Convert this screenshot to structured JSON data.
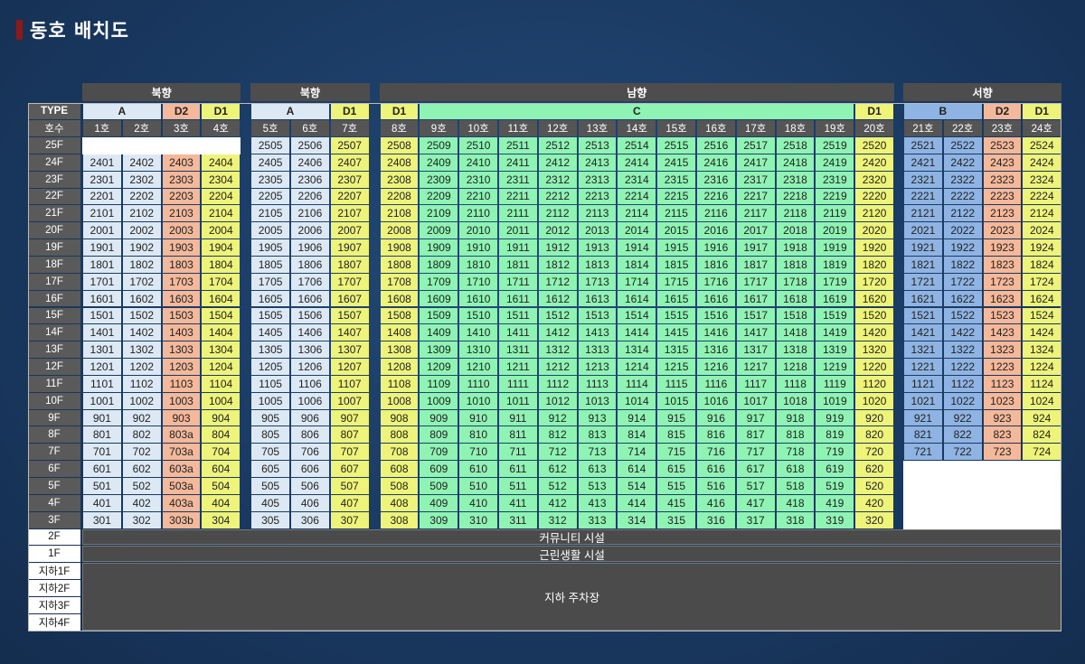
{
  "title": "동호 배치도",
  "colors": {
    "A": "#dce9f5",
    "B": "#8fb4e3",
    "C": "#8ff3b4",
    "D1": "#eef37a",
    "D2": "#f4b89a"
  },
  "labels": {
    "type": "TYPE",
    "ho": "호수",
    "floor2": "2F",
    "floor1": "1F",
    "b1": "지하1F",
    "b2": "지하2F",
    "b3": "지하3F",
    "b4": "지하4F",
    "community": "커뮤니티 시설",
    "retail": "근린생활 시설",
    "parking": "지하 주차장"
  },
  "floors": [
    "25F",
    "24F",
    "23F",
    "22F",
    "21F",
    "20F",
    "19F",
    "18F",
    "17F",
    "16F",
    "15F",
    "14F",
    "13F",
    "12F",
    "11F",
    "10F",
    "9F",
    "8F",
    "7F",
    "6F",
    "5F",
    "4F",
    "3F"
  ],
  "blocks": [
    {
      "direction": "북향",
      "types": [
        {
          "label": "A",
          "type": "A",
          "span": 2
        },
        {
          "label": "D2",
          "type": "D2",
          "span": 1
        },
        {
          "label": "D1",
          "type": "D1",
          "span": 1
        }
      ],
      "lines": [
        {
          "num": 1,
          "ho": "1호",
          "type": "A",
          "max": 24,
          "minF": 3
        },
        {
          "num": 2,
          "ho": "2호",
          "type": "A",
          "max": 24,
          "minF": 3
        },
        {
          "num": 3,
          "ho": "3호",
          "type": "D2",
          "max": 24,
          "minF": 3
        },
        {
          "num": 4,
          "ho": "4호",
          "type": "D1",
          "max": 24,
          "minF": 3
        }
      ]
    },
    {
      "direction": "북향",
      "types": [
        {
          "label": "A",
          "type": "A",
          "span": 2
        },
        {
          "label": "D1",
          "type": "D1",
          "span": 1
        }
      ],
      "lines": [
        {
          "num": 5,
          "ho": "5호",
          "type": "A",
          "max": 25,
          "minF": 3
        },
        {
          "num": 6,
          "ho": "6호",
          "type": "A",
          "max": 25,
          "minF": 3
        },
        {
          "num": 7,
          "ho": "7호",
          "type": "D1",
          "max": 25,
          "minF": 3
        }
      ]
    },
    {
      "direction": "남향",
      "types": [
        {
          "label": "D1",
          "type": "D1",
          "span": 1
        },
        {
          "label": "C",
          "type": "C",
          "span": 11
        },
        {
          "label": "D1",
          "type": "D1",
          "span": 1
        }
      ],
      "lines": [
        {
          "num": 8,
          "ho": "8호",
          "type": "D1",
          "max": 25,
          "minF": 3
        },
        {
          "num": 9,
          "ho": "9호",
          "type": "C",
          "max": 25,
          "minF": 3
        },
        {
          "num": 10,
          "ho": "10호",
          "type": "C",
          "max": 25,
          "minF": 3
        },
        {
          "num": 11,
          "ho": "11호",
          "type": "C",
          "max": 25,
          "minF": 3
        },
        {
          "num": 12,
          "ho": "12호",
          "type": "C",
          "max": 25,
          "minF": 3
        },
        {
          "num": 13,
          "ho": "13호",
          "type": "C",
          "max": 25,
          "minF": 3
        },
        {
          "num": 14,
          "ho": "14호",
          "type": "C",
          "max": 25,
          "minF": 3
        },
        {
          "num": 15,
          "ho": "15호",
          "type": "C",
          "max": 25,
          "minF": 3
        },
        {
          "num": 16,
          "ho": "16호",
          "type": "C",
          "max": 25,
          "minF": 3
        },
        {
          "num": 17,
          "ho": "17호",
          "type": "C",
          "max": 25,
          "minF": 3
        },
        {
          "num": 18,
          "ho": "18호",
          "type": "C",
          "max": 25,
          "minF": 3
        },
        {
          "num": 19,
          "ho": "19호",
          "type": "C",
          "max": 25,
          "minF": 3
        },
        {
          "num": 20,
          "ho": "20호",
          "type": "D1",
          "max": 25,
          "minF": 3
        }
      ]
    },
    {
      "direction": "서향",
      "types": [
        {
          "label": "B",
          "type": "B",
          "span": 2
        },
        {
          "label": "D2",
          "type": "D2",
          "span": 1
        },
        {
          "label": "D1",
          "type": "D1",
          "span": 1
        }
      ],
      "lines": [
        {
          "num": 21,
          "ho": "21호",
          "type": "B",
          "max": 25,
          "minF": 7
        },
        {
          "num": 22,
          "ho": "22호",
          "type": "B",
          "max": 25,
          "minF": 7
        },
        {
          "num": 23,
          "ho": "23호",
          "type": "D2",
          "max": 25,
          "minF": 7
        },
        {
          "num": 24,
          "ho": "24호",
          "type": "D1",
          "max": 25,
          "minF": 7
        }
      ]
    }
  ],
  "unit_suffix_overrides": {
    "803": "803a",
    "703": "703a",
    "603": "603a",
    "503": "503a",
    "403": "403a",
    "303": "303b"
  }
}
